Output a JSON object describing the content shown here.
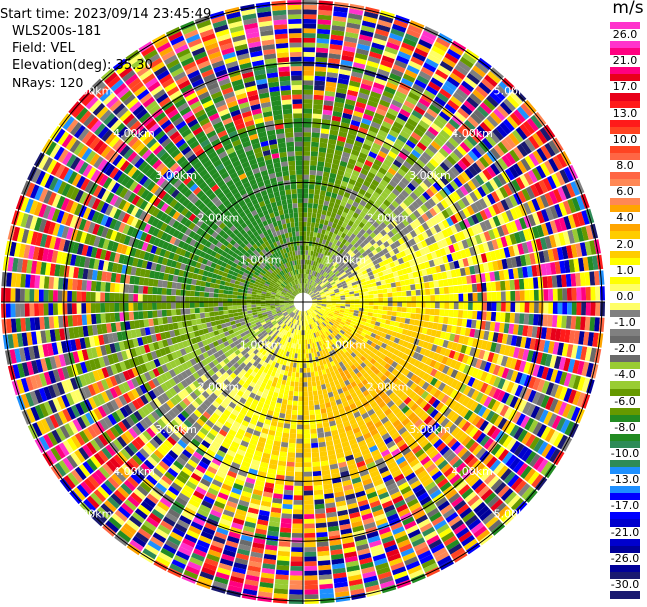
{
  "header": {
    "start_time": "Start time: 2023/09/14 23:45:49",
    "instrument": "WLS200s-181",
    "field": "Field: VEL",
    "elevation": "Elevation(deg): 35.30",
    "nrays": "NRays: 120"
  },
  "colorbar": {
    "unit": "m/s",
    "ticks": [
      "26.0",
      "21.0",
      "17.0",
      "13.0",
      "10.0",
      "8.0",
      "6.0",
      "4.0",
      "2.0",
      "1.0",
      "0.0",
      "-1.0",
      "-2.0",
      "-4.0",
      "-6.0",
      "-8.0",
      "-10.0",
      "-13.0",
      "-17.0",
      "-21.0",
      "-26.0",
      "-30.0"
    ],
    "colors": [
      "#ff33cc",
      "#ff0080",
      "#e8001a",
      "#ff1a1a",
      "#ff4422",
      "#ff6644",
      "#ff8855",
      "#ffa500",
      "#ffcc00",
      "#ffff00",
      "#ffff66",
      "#808080",
      "#6a6a6a",
      "#99cc33",
      "#669900",
      "#228b22",
      "#2e8b57",
      "#1e90ff",
      "#0000ff",
      "#0000cd",
      "#000099",
      "#191970"
    ]
  },
  "range_labels": [
    "1.00km",
    "2.00km",
    "3.00km",
    "4.00km",
    "5.00km"
  ],
  "plot": {
    "rings_km": [
      1,
      2,
      3,
      4,
      5
    ],
    "max_range_km": 5.05,
    "nrays": 120
  }
}
